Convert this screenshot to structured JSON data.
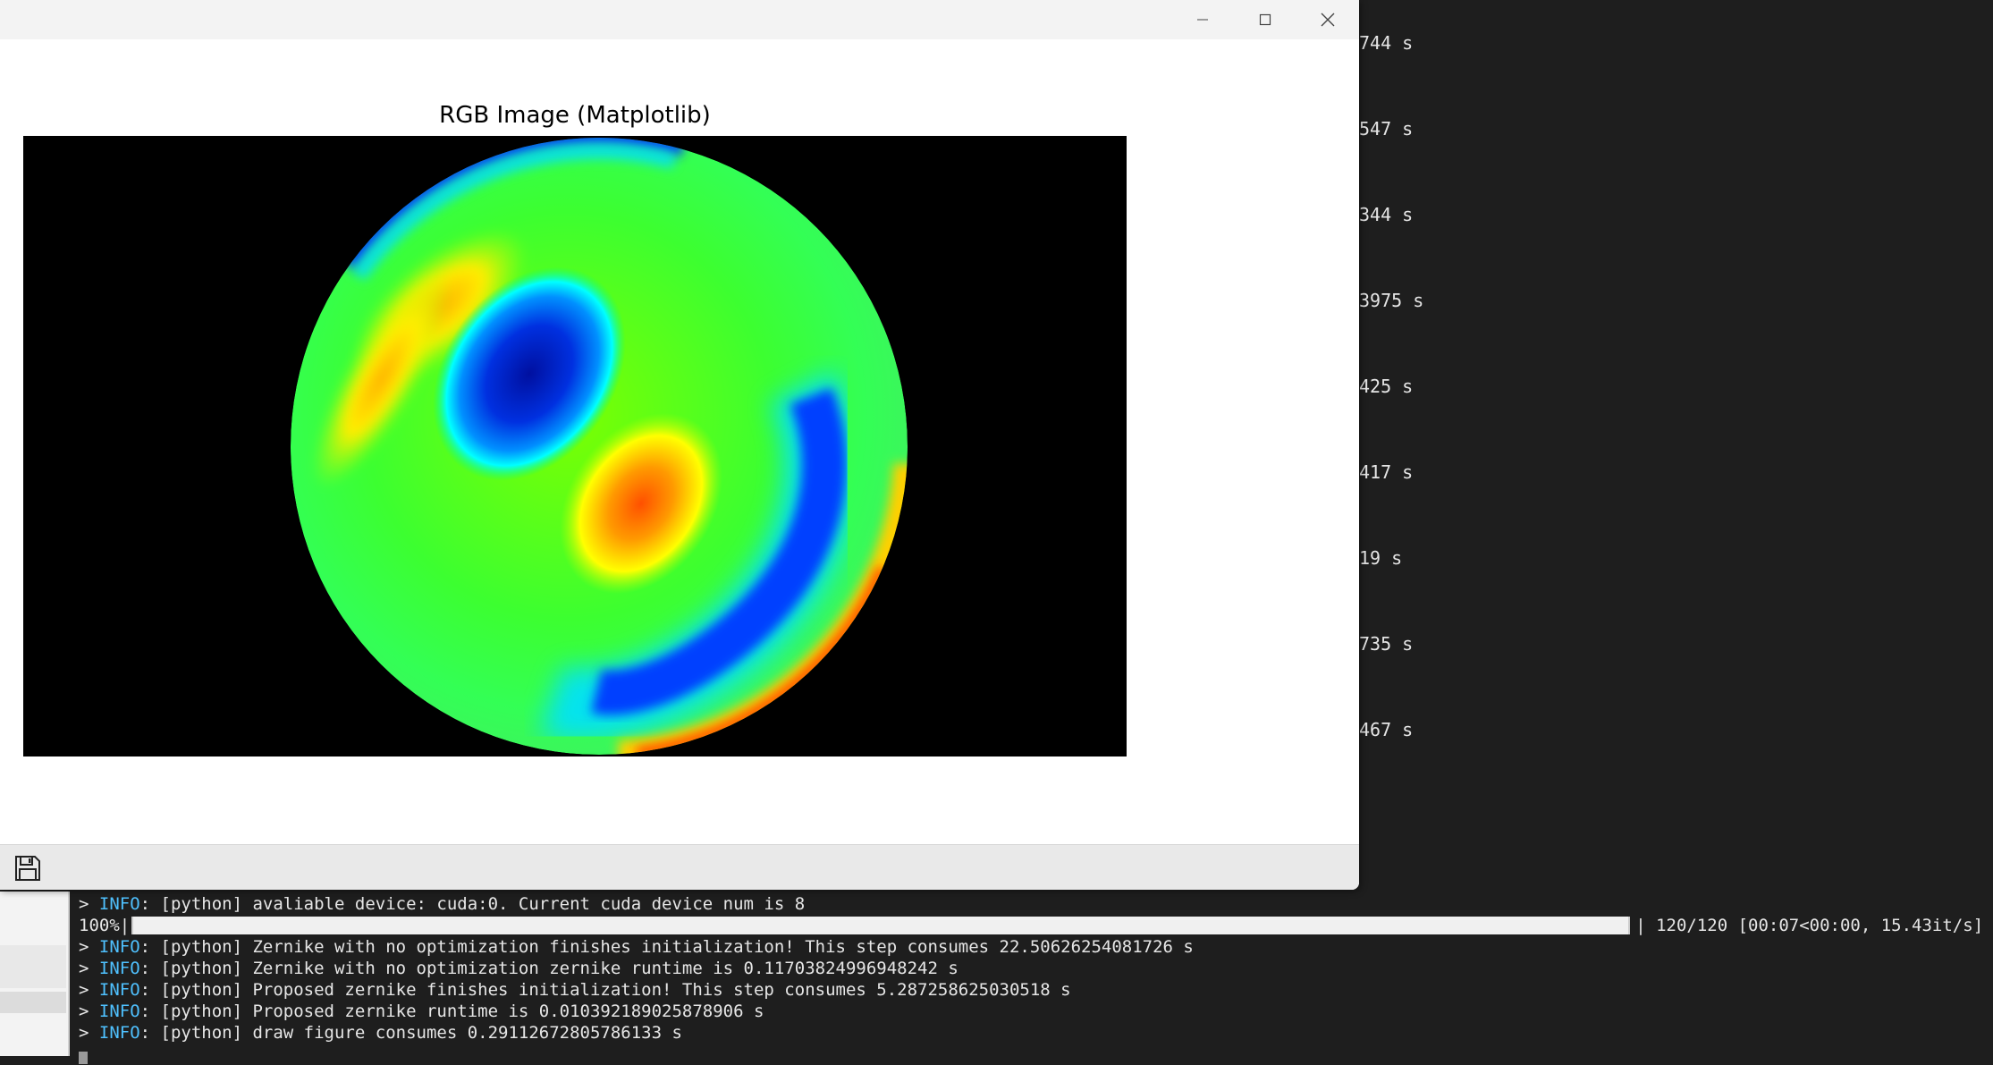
{
  "background_terminal": {
    "lines": [
      "744 s",
      "547 s",
      "344 s",
      "3975 s",
      "425 s",
      "417 s",
      "19 s",
      "735 s",
      "467 s"
    ]
  },
  "window": {
    "title": "",
    "controls": {
      "minimize_icon": "minimize-icon",
      "maximize_icon": "maximize-icon",
      "close_icon": "close-icon"
    }
  },
  "figure": {
    "title": "RGB Image (Matplotlib)",
    "image_description_icon": "zernike-wavefront-image"
  },
  "toolbar": {
    "save_icon": "save-icon"
  },
  "terminal": {
    "prompt": "> ",
    "info_tag": "INFO",
    "lines": [
      {
        "kind": "info",
        "text": ": [python] avaliable device: cuda:0. Current cuda device num is 8"
      },
      {
        "kind": "progress",
        "percent_label": "100%|",
        "progress": 1.0,
        "suffix": "| 120/120 [00:07<00:00, 15.43it/s]"
      },
      {
        "kind": "info",
        "text": ": [python] Zernike with no optimization finishes initialization! This step consumes 22.50626254081726 s"
      },
      {
        "kind": "info",
        "text": ": [python] Zernike with no optimization zernike runtime is 0.11703824996948242 s"
      },
      {
        "kind": "info",
        "text": ": [python] Proposed zernike finishes initialization! This step consumes 5.287258625030518 s"
      },
      {
        "kind": "info",
        "text": ": [python] Proposed zernike runtime is 0.010392189025878906 s"
      },
      {
        "kind": "info",
        "text": ": [python] draw figure consumes 0.29112672805786133 s"
      }
    ]
  },
  "colors": {
    "info": "#4fc1ff",
    "terminal_bg": "#1e1e1e",
    "terminal_fg": "#e6e6e6"
  }
}
